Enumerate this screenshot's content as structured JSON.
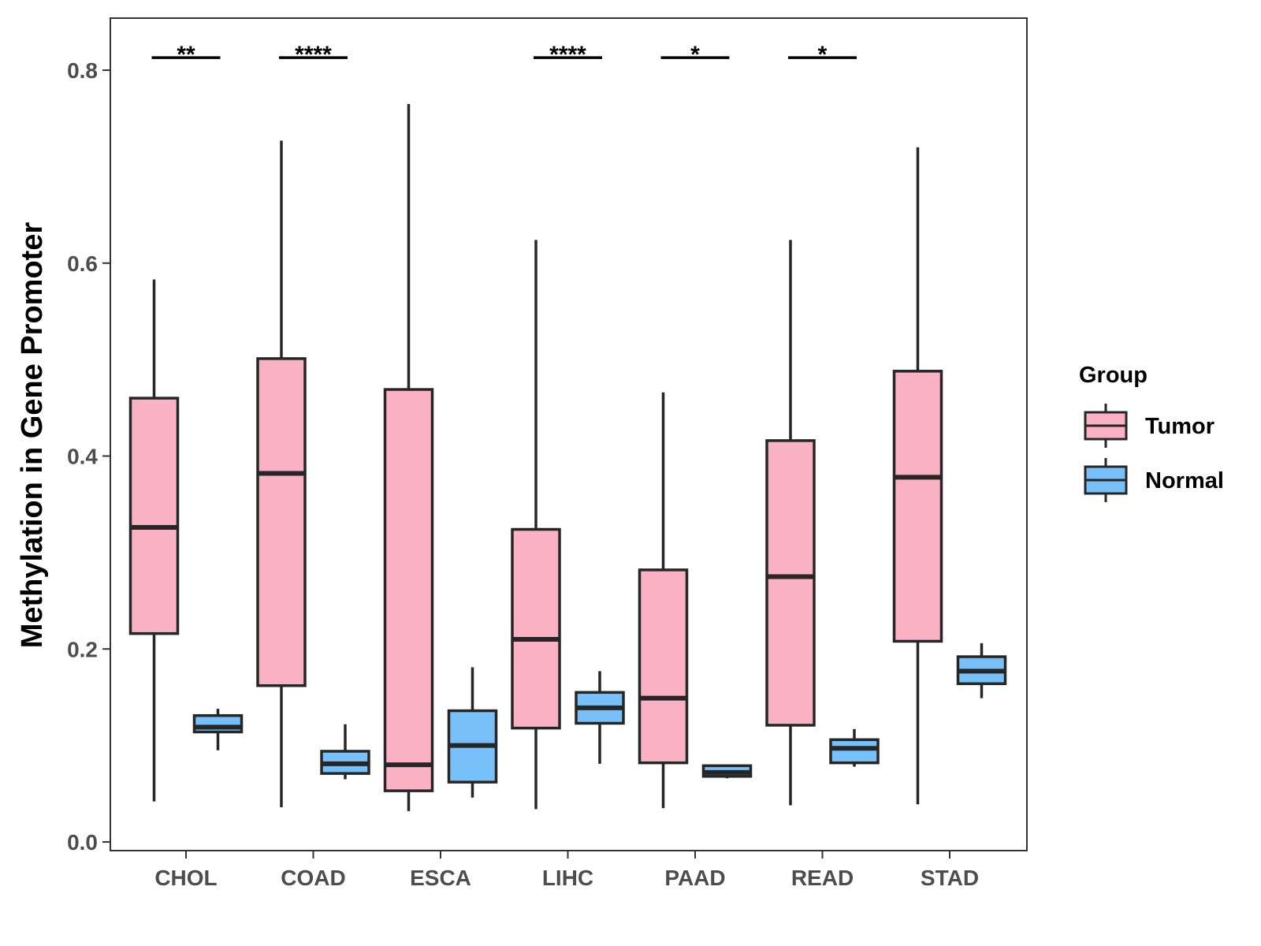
{
  "chart_data": {
    "type": "boxplot",
    "title": "",
    "xlabel": "",
    "ylabel": "Methylation in Gene Promoter",
    "ylim": [
      0.0,
      0.855
    ],
    "yticks": [
      0.0,
      0.2,
      0.4,
      0.6,
      0.8
    ],
    "ytick_labels": [
      "0.0",
      "0.2",
      "0.4",
      "0.6",
      "0.8"
    ],
    "categories": [
      "CHOL",
      "COAD",
      "ESCA",
      "LIHC",
      "PAAD",
      "READ",
      "STAD"
    ],
    "legend": {
      "title": "Group",
      "position": "right",
      "entries": [
        {
          "name": "Tumor",
          "color": "#FBB1C4"
        },
        {
          "name": "Normal",
          "color": "#78C0FA"
        }
      ]
    },
    "series": [
      {
        "name": "Tumor",
        "color": "#FBB1C4",
        "boxes": [
          {
            "category": "CHOL",
            "min": 0.042,
            "q1": 0.216,
            "median": 0.326,
            "q3": 0.46,
            "max": 0.583
          },
          {
            "category": "COAD",
            "min": 0.036,
            "q1": 0.162,
            "median": 0.382,
            "q3": 0.501,
            "max": 0.727
          },
          {
            "category": "ESCA",
            "min": 0.032,
            "q1": 0.053,
            "median": 0.08,
            "q3": 0.469,
            "max": 0.765
          },
          {
            "category": "LIHC",
            "min": 0.034,
            "q1": 0.118,
            "median": 0.21,
            "q3": 0.324,
            "max": 0.624
          },
          {
            "category": "PAAD",
            "min": 0.035,
            "q1": 0.082,
            "median": 0.149,
            "q3": 0.282,
            "max": 0.466
          },
          {
            "category": "READ",
            "min": 0.038,
            "q1": 0.121,
            "median": 0.275,
            "q3": 0.416,
            "max": 0.624
          },
          {
            "category": "STAD",
            "min": 0.039,
            "q1": 0.208,
            "median": 0.378,
            "q3": 0.488,
            "max": 0.72
          }
        ]
      },
      {
        "name": "Normal",
        "color": "#78C0FA",
        "boxes": [
          {
            "category": "CHOL",
            "min": 0.095,
            "q1": 0.114,
            "median": 0.119,
            "q3": 0.131,
            "max": 0.138
          },
          {
            "category": "COAD",
            "min": 0.065,
            "q1": 0.071,
            "median": 0.081,
            "q3": 0.094,
            "max": 0.122
          },
          {
            "category": "ESCA",
            "min": 0.046,
            "q1": 0.062,
            "median": 0.1,
            "q3": 0.136,
            "max": 0.181
          },
          {
            "category": "LIHC",
            "min": 0.081,
            "q1": 0.123,
            "median": 0.139,
            "q3": 0.155,
            "max": 0.177
          },
          {
            "category": "PAAD",
            "min": 0.066,
            "q1": 0.068,
            "median": 0.072,
            "q3": 0.079,
            "max": 0.08
          },
          {
            "category": "READ",
            "min": 0.078,
            "q1": 0.082,
            "median": 0.097,
            "q3": 0.106,
            "max": 0.117
          },
          {
            "category": "STAD",
            "min": 0.149,
            "q1": 0.164,
            "median": 0.177,
            "q3": 0.192,
            "max": 0.206
          }
        ]
      }
    ],
    "annotations": [
      {
        "category": "CHOL",
        "label": "**",
        "y": 0.813
      },
      {
        "category": "COAD",
        "label": "****",
        "y": 0.813
      },
      {
        "category": "LIHC",
        "label": "****",
        "y": 0.813
      },
      {
        "category": "PAAD",
        "label": "*",
        "y": 0.813
      },
      {
        "category": "READ",
        "label": "*",
        "y": 0.813
      }
    ],
    "grid": false
  }
}
